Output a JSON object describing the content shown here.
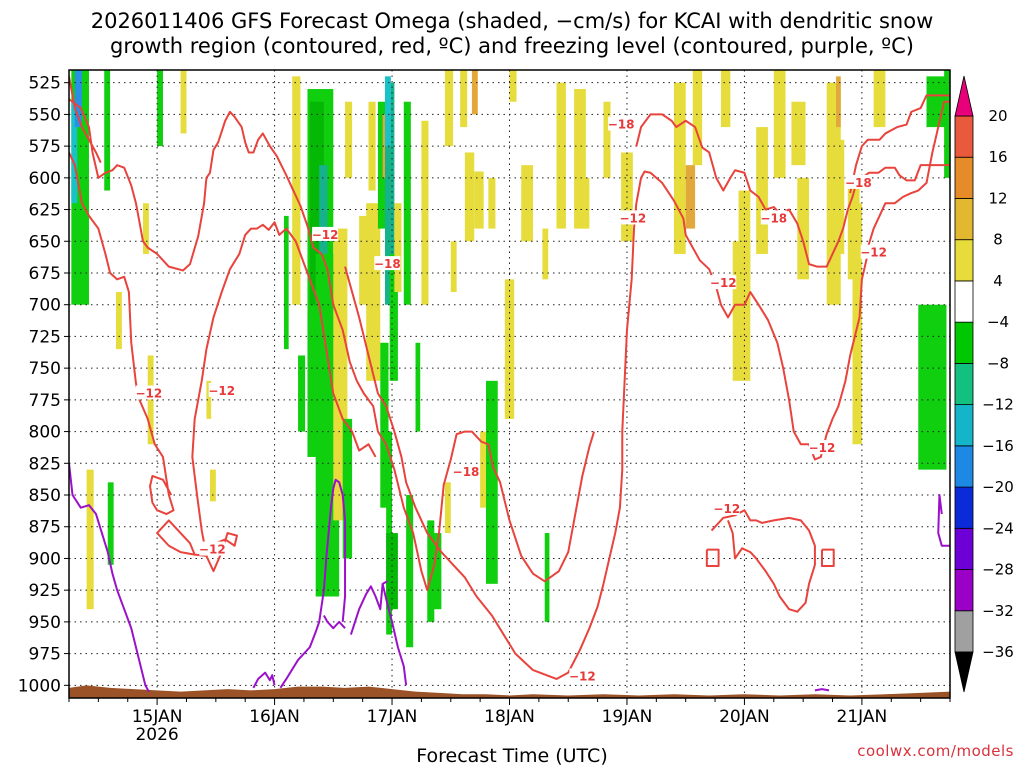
{
  "title_line1": "2026011406 GFS Forecast Omega (shaded, −cm/s) for KCAI with dendritic snow",
  "title_line2": "growth region (contoured, red, ºC) and freezing level (contoured, purple, ºC)",
  "credit": "coolwx.com/models",
  "chart_data": {
    "type": "heatmap",
    "xlabel": "Forecast Time (UTC)",
    "ylabel": "",
    "x_range_days": [
      14.25,
      21.75
    ],
    "ylim": [
      1010,
      515
    ],
    "y_ticks": [
      525,
      550,
      575,
      600,
      625,
      650,
      675,
      700,
      725,
      750,
      775,
      800,
      825,
      850,
      875,
      900,
      925,
      950,
      975,
      1000
    ],
    "x_ticks": [
      {
        "day": 15,
        "label": "15JAN",
        "sub": "2026"
      },
      {
        "day": 16,
        "label": "16JAN",
        "sub": ""
      },
      {
        "day": 17,
        "label": "17JAN",
        "sub": ""
      },
      {
        "day": 18,
        "label": "18JAN",
        "sub": ""
      },
      {
        "day": 19,
        "label": "19JAN",
        "sub": ""
      },
      {
        "day": 20,
        "label": "20JAN",
        "sub": ""
      },
      {
        "day": 21,
        "label": "21JAN",
        "sub": ""
      }
    ],
    "grid": true,
    "colorbar": {
      "levels": [
        -36,
        -32,
        -28,
        -24,
        -20,
        -16,
        -12,
        -8,
        -4,
        4,
        8,
        12,
        16,
        20
      ],
      "colors": [
        "#a0a0a0",
        "#9b00c7",
        "#6c00d6",
        "#0b2bd9",
        "#1e88e5",
        "#14b5c9",
        "#12c080",
        "#00c800",
        "#ffffff",
        "#e7dc3a",
        "#e2b830",
        "#e58c28",
        "#e85a3b",
        "#e23b5e"
      ],
      "min_color": "#000000",
      "max_color": "#e8007a"
    },
    "contour_labels": [
      {
        "x": 14.93,
        "y": 770,
        "text": "−12"
      },
      {
        "x": 15.55,
        "y": 768,
        "text": "−12"
      },
      {
        "x": 15.47,
        "y": 893,
        "text": "−12"
      },
      {
        "x": 16.43,
        "y": 645,
        "text": "−12"
      },
      {
        "x": 16.96,
        "y": 668,
        "text": "−18"
      },
      {
        "x": 17.63,
        "y": 832,
        "text": "−18"
      },
      {
        "x": 18.95,
        "y": 558,
        "text": "−18"
      },
      {
        "x": 19.05,
        "y": 632,
        "text": "−12"
      },
      {
        "x": 18.62,
        "y": 993,
        "text": "−12"
      },
      {
        "x": 19.82,
        "y": 683,
        "text": "−12"
      },
      {
        "x": 20.25,
        "y": 632,
        "text": "−18"
      },
      {
        "x": 19.85,
        "y": 861,
        "text": "−12"
      },
      {
        "x": 20.66,
        "y": 813,
        "text": "−12"
      },
      {
        "x": 20.97,
        "y": 604,
        "text": "−18"
      },
      {
        "x": 21.1,
        "y": 659,
        "text": "−12"
      }
    ]
  }
}
